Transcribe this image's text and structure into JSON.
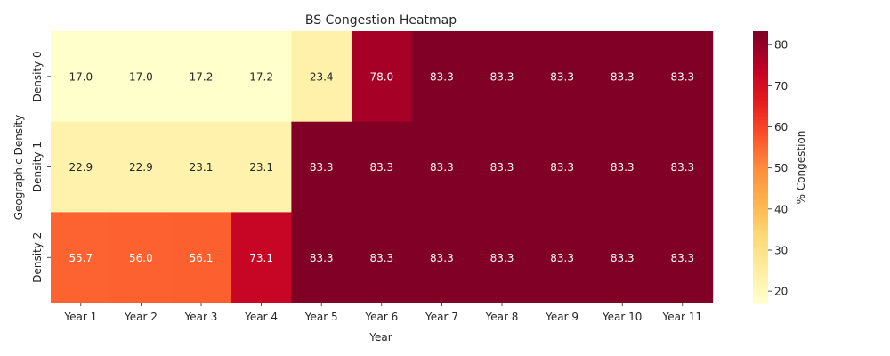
{
  "chart_data": {
    "type": "heatmap",
    "title": "BS Congestion Heatmap",
    "xlabel": "Year",
    "ylabel": "Geographic Density",
    "x_categories": [
      "Year 1",
      "Year 2",
      "Year 3",
      "Year 4",
      "Year 5",
      "Year 6",
      "Year 7",
      "Year 8",
      "Year 9",
      "Year 10",
      "Year 11"
    ],
    "y_categories": [
      "Density 0",
      "Density 1",
      "Density 2"
    ],
    "values": [
      [
        17.0,
        17.0,
        17.2,
        17.2,
        23.4,
        78.0,
        83.3,
        83.3,
        83.3,
        83.3,
        83.3
      ],
      [
        22.9,
        22.9,
        23.1,
        23.1,
        83.3,
        83.3,
        83.3,
        83.3,
        83.3,
        83.3,
        83.3
      ],
      [
        55.7,
        56.0,
        56.1,
        73.1,
        83.3,
        83.3,
        83.3,
        83.3,
        83.3,
        83.3,
        83.3
      ]
    ],
    "value_format": "0.1f",
    "colormap": "YlOrRd",
    "color_range": [
      17.0,
      83.3
    ],
    "colorbar": {
      "label": "% Congestion",
      "ticks": [
        20,
        30,
        40,
        50,
        60,
        70,
        80
      ]
    },
    "colors": {
      "light_text": "#ffffff",
      "dark_text": "#262626"
    }
  }
}
